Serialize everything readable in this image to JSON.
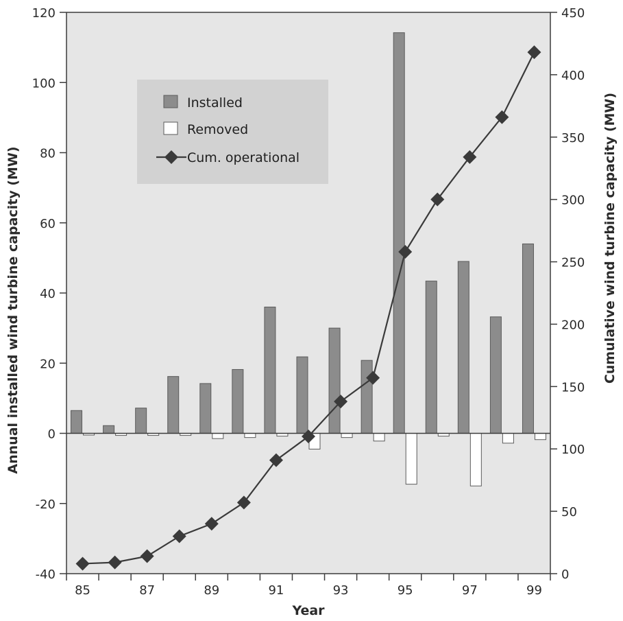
{
  "chart_data": {
    "type": "bar",
    "x": [
      "85",
      "86",
      "87",
      "88",
      "89",
      "90",
      "91",
      "92",
      "93",
      "94",
      "95",
      "96",
      "97",
      "98",
      "99"
    ],
    "x_tick_labels": [
      "85",
      "87",
      "89",
      "91",
      "93",
      "95",
      "97",
      "99"
    ],
    "series": [
      {
        "name": "Installed",
        "axis": "left",
        "type": "bar",
        "color": "#8c8c8c",
        "values": [
          6.5,
          2.2,
          7.2,
          16.2,
          14.2,
          18.2,
          36.0,
          21.8,
          30.0,
          20.8,
          114.2,
          43.4,
          49.0,
          33.2,
          54.0
        ]
      },
      {
        "name": "Removed",
        "axis": "left",
        "type": "bar",
        "color": "#ffffff",
        "values": [
          -0.5,
          -0.6,
          -0.6,
          -0.6,
          -1.5,
          -1.2,
          -0.8,
          -4.5,
          -1.2,
          -2.2,
          -14.5,
          -0.8,
          -15.0,
          -2.8,
          -1.8
        ]
      },
      {
        "name": "Cum. operational",
        "axis": "right",
        "type": "line",
        "color": "#3a3a3a",
        "values": [
          8,
          9,
          14,
          30,
          40,
          57,
          91,
          110,
          138,
          157,
          258,
          300,
          334,
          366,
          418
        ]
      }
    ],
    "ylabel": "Annual installed wind turbine capacity (MW)",
    "ylabel_right": "Cumulative wind turbine capacity (MW)",
    "xlabel": "Year",
    "ylim": [
      -40,
      120
    ],
    "yticks": [
      -40,
      -20,
      0,
      20,
      40,
      60,
      80,
      100,
      120
    ],
    "ylim_right": [
      0,
      450
    ],
    "yticks_right": [
      0,
      50,
      100,
      150,
      200,
      250,
      300,
      350,
      400,
      450
    ],
    "grid": false,
    "legend_placement": "top-left",
    "colors": {
      "background": "#e6e6e6",
      "legend_box": "#d2d2d2",
      "axis": "#3c3c3c"
    }
  }
}
